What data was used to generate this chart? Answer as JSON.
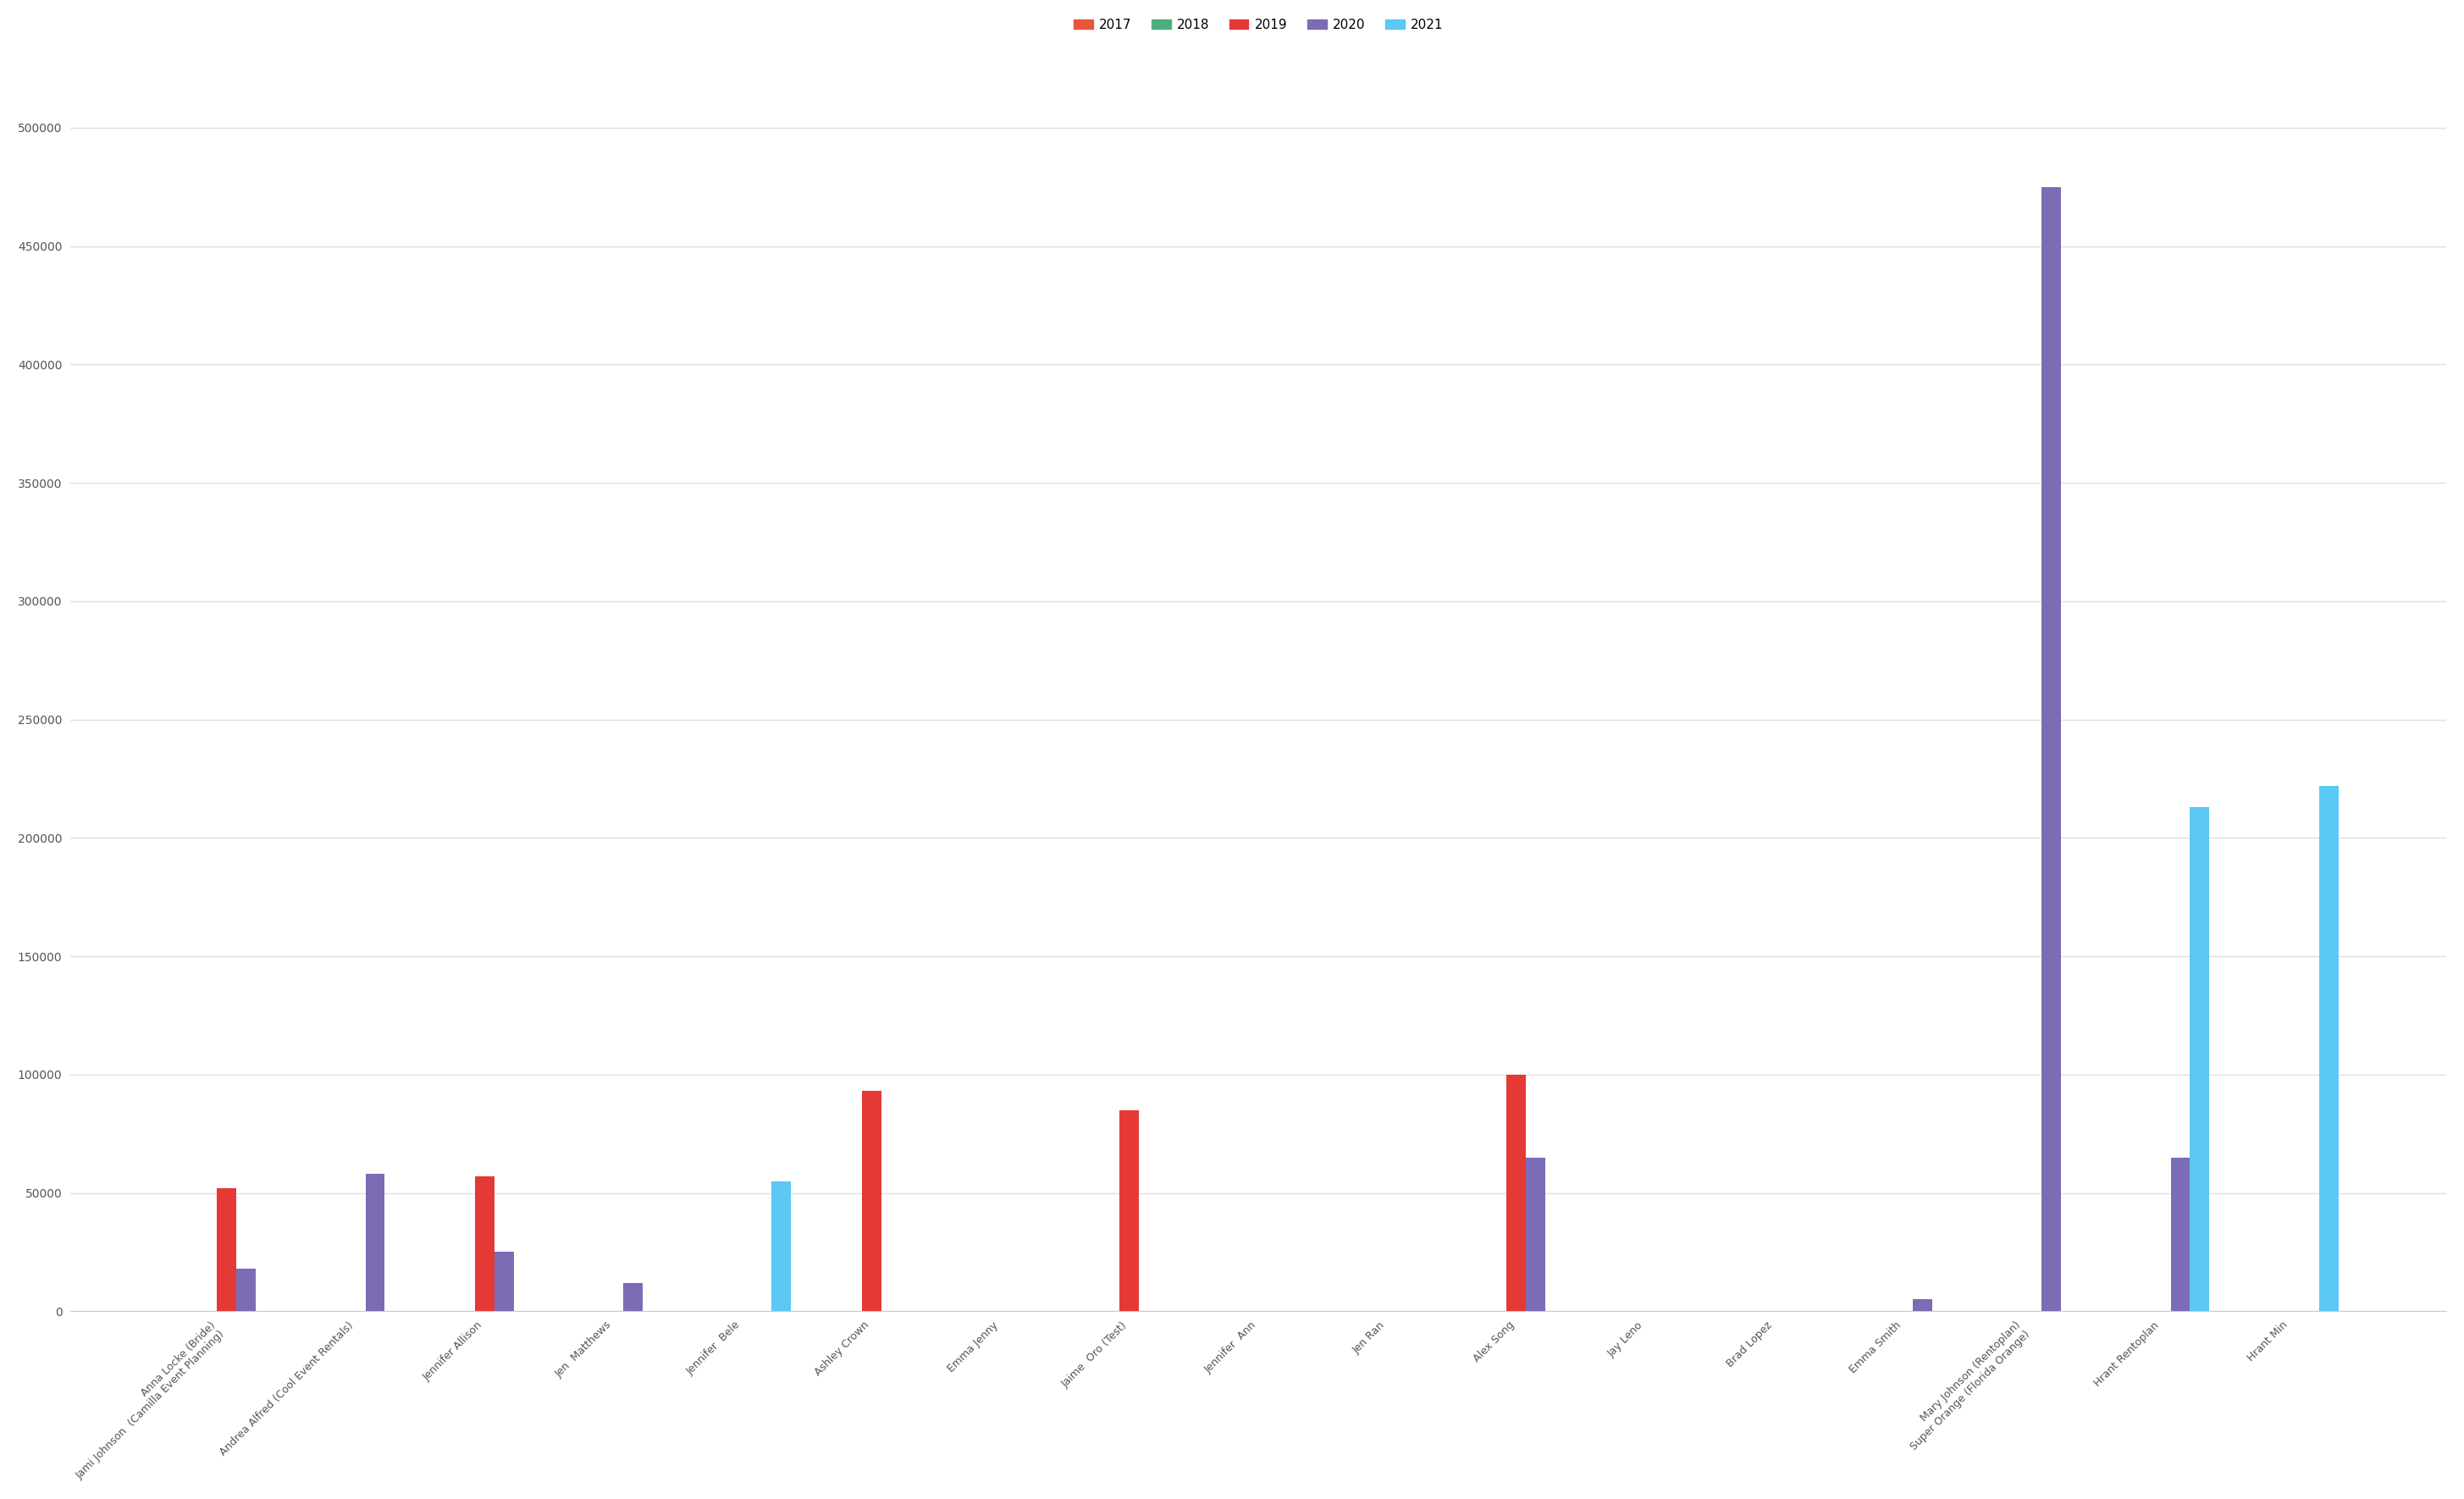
{
  "categories": [
    "Anna Locke (Bride)\nJami Johnson  (Camilla Event Planning)",
    "Andrea Alfred (Cool Event Rentals)",
    "Jennifer Allison",
    "Jen  Matthews",
    "Jennifer  Bele",
    "Ashley Crown",
    "Emma Jenny",
    "Jaime  Oro (Test)",
    "Jennifer  Ann",
    "Jen Ran",
    "Alex Song",
    "Jay Leno",
    "Brad Lopez",
    "Emma Smith",
    "Mary Johnson (Rentoplan)\nSuper Orange (Florida Orange)",
    "Hrant Rentoplan",
    "Hrant Min"
  ],
  "years": [
    "2017",
    "2018",
    "2019",
    "2020",
    "2021"
  ],
  "colors": {
    "2017": "#e8563a",
    "2018": "#4caf7d",
    "2019": "#e53935",
    "2020": "#7c6bb5",
    "2021": "#5bc8f5"
  },
  "data": {
    "2017": [
      0,
      0,
      0,
      0,
      0,
      0,
      0,
      0,
      0,
      0,
      0,
      0,
      0,
      0,
      0,
      0,
      0
    ],
    "2018": [
      0,
      0,
      0,
      0,
      0,
      0,
      0,
      0,
      0,
      0,
      0,
      0,
      0,
      0,
      0,
      0,
      0
    ],
    "2019": [
      52000,
      0,
      57000,
      0,
      0,
      93000,
      0,
      85000,
      0,
      0,
      100000,
      0,
      0,
      0,
      0,
      0,
      0
    ],
    "2020": [
      18000,
      58000,
      25000,
      12000,
      0,
      0,
      0,
      0,
      0,
      0,
      65000,
      0,
      0,
      5000,
      475000,
      65000,
      0
    ],
    "2021": [
      0,
      0,
      0,
      0,
      55000,
      0,
      0,
      0,
      0,
      0,
      0,
      0,
      0,
      0,
      0,
      213000,
      222000
    ]
  },
  "ylim": [
    0,
    520000
  ],
  "yticks": [
    0,
    50000,
    100000,
    150000,
    200000,
    250000,
    300000,
    350000,
    400000,
    450000,
    500000
  ],
  "background_color": "#ffffff",
  "grid_color": "#e0e0e0",
  "bar_width": 0.15,
  "legend_loc": "upper center"
}
